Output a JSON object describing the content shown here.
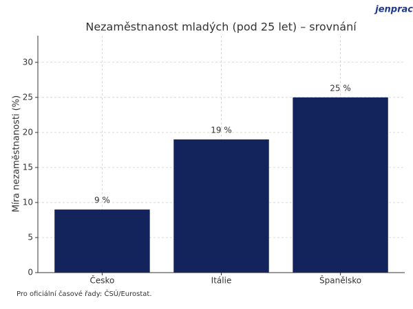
{
  "chart_data": {
    "type": "bar",
    "title": "Nezaměstnanost mladých (pod 25 let) – srovnání",
    "brand": "jenprac",
    "y_label": "Míra nezaměstnanosti (%)",
    "footnote": "Pro oficiální časové řady: ČSÚ/Eurostat.",
    "categories": [
      "Česko",
      "Itálie",
      "Španělsko"
    ],
    "values": [
      9,
      19,
      25
    ],
    "value_labels": [
      "9 %",
      "19 %",
      "25 %"
    ],
    "color": "#13235b",
    "ylim": [
      0,
      33.8
    ],
    "yticks": [
      0,
      5,
      10,
      15,
      20,
      25,
      30
    ],
    "grid": true
  }
}
